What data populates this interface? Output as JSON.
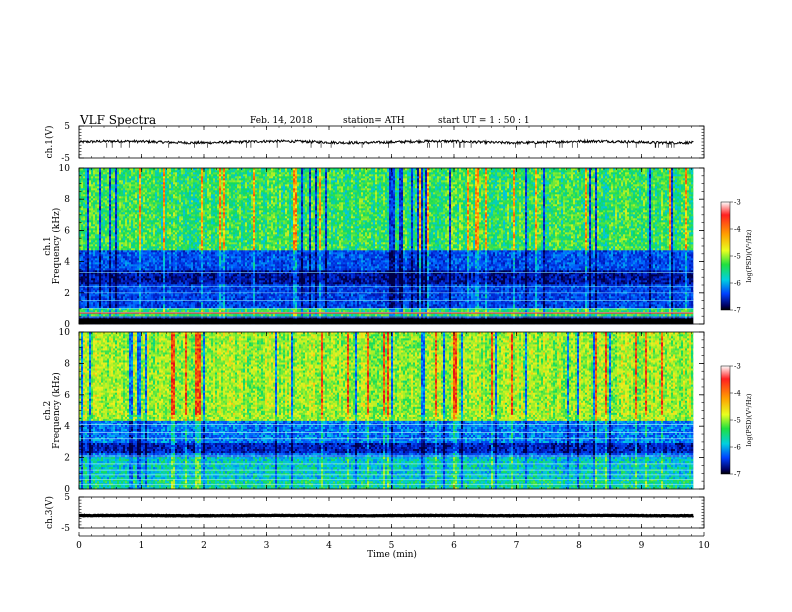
{
  "header": {
    "title": "VLF  Spectra",
    "date": "Feb. 14, 2018",
    "station": "station= ATH",
    "start": "start  UT  =   1 : 50 : 1"
  },
  "chart_data": {
    "type": "heatmap",
    "xlabel": "Time  (min)",
    "xlim": [
      0,
      10
    ],
    "x_ticks": [
      "0",
      "1",
      "2",
      "3",
      "4",
      "5",
      "6",
      "7",
      "8",
      "9",
      "10"
    ],
    "data_end_min": 9.83,
    "panels": [
      {
        "id": "ch1-voltage",
        "type": "line",
        "ylabel": "ch.1(V)",
        "ylim": [
          -5,
          5
        ],
        "y_ticks": [
          "5",
          "-5"
        ],
        "baseline": 0.0,
        "amplitude": 0.8
      },
      {
        "id": "ch1-spectrogram",
        "type": "heatmap",
        "ylabel": "ch.1\nFrequency  (kHz)",
        "ylabel_lines": [
          "ch.1",
          "Frequency  (kHz)"
        ],
        "ylim": [
          0,
          10
        ],
        "y_ticks": [
          "0",
          "2",
          "4",
          "6",
          "8",
          "10"
        ],
        "bands_khz": [
          {
            "from": 0.0,
            "to": 0.5,
            "level": 0.06
          },
          {
            "from": 0.5,
            "to": 1.0,
            "level": 0.5
          },
          {
            "from": 1.0,
            "to": 2.6,
            "level": 0.2
          },
          {
            "from": 2.6,
            "to": 3.5,
            "level": 0.08
          },
          {
            "from": 3.5,
            "to": 4.8,
            "level": 0.22
          },
          {
            "from": 4.8,
            "to": 10.0,
            "level": 0.52
          }
        ],
        "colorbar": {
          "label": "log(PSD)(V²/Hz)",
          "range": [
            -7,
            -3
          ],
          "ticks": [
            "-3",
            "-4",
            "-5",
            "-6",
            "-7"
          ]
        }
      },
      {
        "id": "ch2-spectrogram",
        "type": "heatmap",
        "ylabel": "ch.2\nFrequency  (kHz)",
        "ylabel_lines": [
          "ch.2",
          "Frequency  (kHz)"
        ],
        "ylim": [
          0,
          10
        ],
        "y_ticks": [
          "0",
          "2",
          "4",
          "6",
          "8",
          "10"
        ],
        "bands_khz": [
          {
            "from": 0.0,
            "to": 0.6,
            "level": 0.45
          },
          {
            "from": 0.6,
            "to": 2.0,
            "level": 0.4
          },
          {
            "from": 2.0,
            "to": 2.3,
            "level": 0.25
          },
          {
            "from": 2.3,
            "to": 3.0,
            "level": 0.12
          },
          {
            "from": 3.0,
            "to": 4.4,
            "level": 0.28
          },
          {
            "from": 4.4,
            "to": 10.0,
            "level": 0.62
          }
        ],
        "colorbar": {
          "label": "log(PSD)(V²/Hz)",
          "range": [
            -7,
            -3
          ],
          "ticks": [
            "-3",
            "-4",
            "-5",
            "-6",
            "-7"
          ]
        }
      },
      {
        "id": "ch3-voltage",
        "type": "line",
        "ylabel": "ch.3(V)",
        "ylim": [
          -5,
          5
        ],
        "y_ticks": [
          "5",
          "-5"
        ],
        "baseline": -1.0,
        "amplitude": 0.15
      }
    ]
  }
}
